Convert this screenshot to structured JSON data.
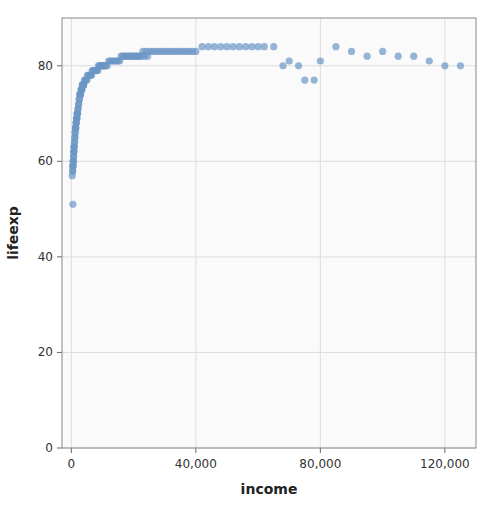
{
  "chart_data": {
    "type": "scatter",
    "xlabel": "income",
    "ylabel": "lifeexp",
    "x": [
      400,
      500,
      600,
      700,
      800,
      900,
      1000,
      1100,
      1200,
      1300,
      1400,
      1500,
      1600,
      1700,
      1800,
      1900,
      2000,
      2200,
      2400,
      2600,
      2800,
      3000,
      3200,
      3400,
      3600,
      3800,
      4000,
      4500,
      5000,
      5500,
      6000,
      6500,
      7000,
      7500,
      8000,
      8500,
      9000,
      9500,
      10000,
      10500,
      11000,
      12000,
      13000,
      14000,
      15000,
      16000,
      17000,
      18000,
      19000,
      20000,
      21000,
      22000,
      23000,
      24000,
      25000,
      26000,
      27000,
      28000,
      29000,
      30000,
      31000,
      32000,
      33000,
      34000,
      35000,
      36000,
      37000,
      38000,
      39000,
      40000,
      42000,
      44000,
      46000,
      48000,
      50000,
      52000,
      54000,
      56000,
      58000,
      60000,
      62000,
      65000,
      68000,
      70000,
      73000,
      75000,
      78000,
      80000,
      85000,
      90000,
      95000,
      100000,
      105000,
      110000,
      115000,
      120000,
      125000,
      550,
      650,
      750,
      850,
      950,
      1050,
      1150,
      1250,
      1350,
      1450,
      1550,
      1650,
      1750,
      1850,
      1950,
      2100,
      2300,
      2500,
      2700,
      2900,
      3100,
      3300,
      3500,
      3700,
      3900,
      4200,
      4700,
      5200,
      5700,
      6200,
      6700,
      7200,
      7700,
      8200,
      8700,
      9200,
      9700,
      10200,
      10700,
      11500,
      12500,
      13500,
      14500,
      15500,
      16500,
      17500,
      18500,
      19500,
      20500,
      21500,
      22500,
      23500,
      24500,
      300,
      450,
      380,
      520,
      680,
      720,
      830
    ],
    "values": [
      58,
      51,
      59,
      60,
      62,
      63,
      64,
      65,
      66,
      67,
      67,
      68,
      68,
      69,
      69,
      70,
      70,
      71,
      72,
      73,
      74,
      74,
      75,
      75,
      76,
      76,
      76,
      77,
      77,
      78,
      78,
      78,
      79,
      79,
      79,
      79,
      80,
      80,
      80,
      80,
      80,
      81,
      81,
      81,
      81,
      82,
      82,
      82,
      82,
      82,
      82,
      82,
      83,
      83,
      83,
      83,
      83,
      83,
      83,
      83,
      83,
      83,
      83,
      83,
      83,
      83,
      83,
      83,
      83,
      83,
      84,
      84,
      84,
      84,
      84,
      84,
      84,
      84,
      84,
      84,
      84,
      84,
      80,
      81,
      80,
      77,
      77,
      81,
      84,
      83,
      82,
      83,
      82,
      82,
      81,
      80,
      80,
      59,
      60,
      61,
      62,
      63,
      64,
      65,
      66,
      67,
      67,
      68,
      69,
      69,
      70,
      70,
      71,
      72,
      73,
      74,
      74,
      75,
      75,
      76,
      76,
      76,
      77,
      77,
      78,
      78,
      78,
      79,
      79,
      79,
      79,
      80,
      80,
      80,
      80,
      80,
      80,
      81,
      81,
      81,
      81,
      82,
      82,
      82,
      82,
      82,
      82,
      82,
      82,
      82,
      57,
      58,
      59,
      60,
      61,
      62,
      63
    ],
    "color": "#6b96c5",
    "xlim": [
      -3000,
      130000
    ],
    "ylim": [
      0,
      90
    ],
    "xticks": [
      0,
      {
        "value": 40000,
        "label": "40,000"
      },
      {
        "value": 80000,
        "label": "80,000"
      },
      {
        "value": 120000,
        "label": "120,000"
      }
    ],
    "yticks": [
      0,
      20,
      40,
      60,
      80
    ],
    "grid": true
  }
}
